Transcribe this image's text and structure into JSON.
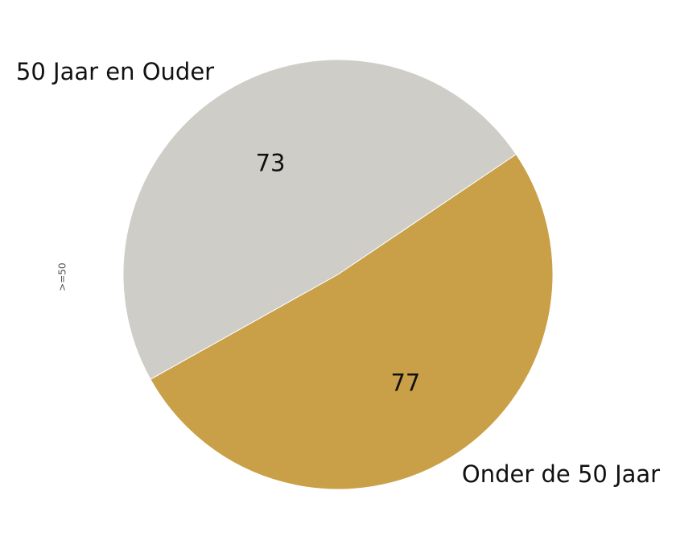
{
  "chart_data": {
    "type": "pie",
    "ylabel": ">=50",
    "slices": [
      {
        "label": "50 Jaar en Ouder",
        "value": 73,
        "color": "#CECDC8"
      },
      {
        "label": "Onder de 50 Jaar",
        "value": 77,
        "color": "#C9A047"
      }
    ]
  }
}
